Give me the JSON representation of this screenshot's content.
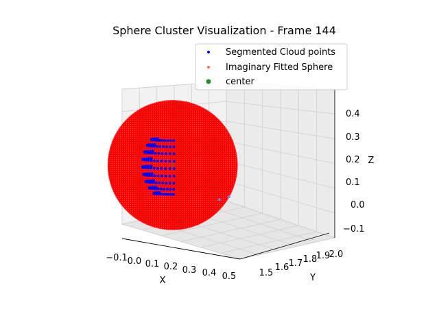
{
  "chart_data": {
    "type": "scatter",
    "projection": "3d",
    "title": "Sphere Cluster Visualization - Frame 144",
    "xlabel": "X",
    "ylabel": "Y",
    "zlabel": "Z",
    "x_ticks": [
      "−0.1",
      "0.0",
      "0.1",
      "0.2",
      "0.3",
      "0.4",
      "0.5"
    ],
    "y_ticks": [
      "1.5",
      "1.6",
      "1.7",
      "1.8",
      "1.9",
      "2.0"
    ],
    "z_ticks": [
      "−0.1",
      "0.0",
      "0.1",
      "0.2",
      "0.3",
      "0.4"
    ],
    "xlim": [
      -0.1,
      0.5
    ],
    "ylim": [
      1.5,
      2.0
    ],
    "zlim": [
      -0.1,
      0.45
    ],
    "grid": true,
    "legend_position": "top-right",
    "legend": [
      {
        "label": "Segmented Cloud points",
        "color": "#0000ff"
      },
      {
        "label": "Imaginary Fitted Sphere",
        "color": "#ff6b5e"
      },
      {
        "label": "center",
        "color": "#2e8b2e"
      }
    ],
    "sphere": {
      "center": [
        0.21,
        1.74,
        0.17
      ],
      "radius": 0.16,
      "color": "#ff0000"
    },
    "center_point": [
      0.21,
      1.74,
      0.17
    ],
    "stray_points": [
      [
        0.45,
        1.76,
        0.02
      ],
      [
        0.49,
        1.78,
        0.035
      ]
    ]
  }
}
